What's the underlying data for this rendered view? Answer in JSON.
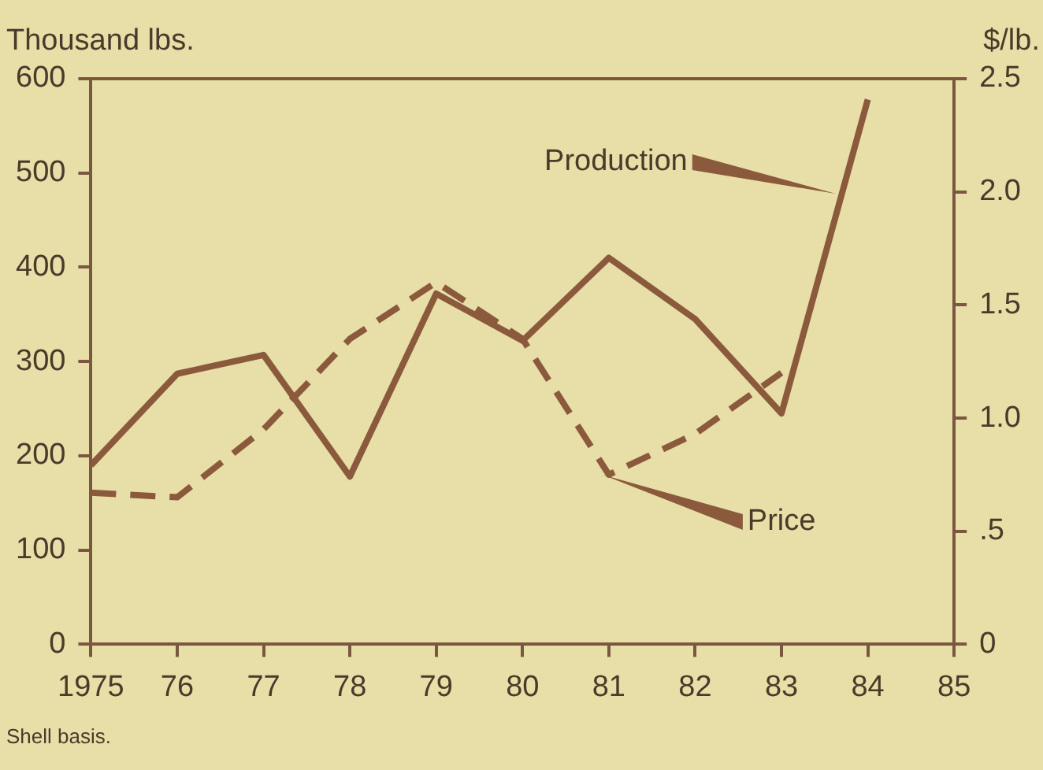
{
  "chart_data": {
    "type": "line",
    "ylabel": "Thousand lbs.",
    "y2label": "$/lb.",
    "annotations": [
      "Shell basis."
    ],
    "x": [
      1975,
      1976,
      1977,
      1978,
      1979,
      1980,
      1981,
      1982,
      1983,
      1984
    ],
    "series": [
      {
        "name": "Production",
        "color": "#8b5a3c",
        "line_style": "solid",
        "values": [
          190,
          287,
          307,
          178,
          372,
          322,
          410,
          345,
          245,
          578
        ]
      },
      {
        "name": "Price",
        "color": "#8b5a3c",
        "line_style": "dashed",
        "axis": "y2",
        "values": [
          0.67,
          0.65,
          0.95,
          1.35,
          1.6,
          1.35,
          0.75,
          0.93,
          1.2,
          null
        ]
      }
    ],
    "xlim": [
      1975,
      1985
    ],
    "xticks": [
      {
        "value": 1975,
        "label": "1975"
      },
      {
        "value": 1976,
        "label": "76"
      },
      {
        "value": 1977,
        "label": "77"
      },
      {
        "value": 1978,
        "label": "78"
      },
      {
        "value": 1979,
        "label": "79"
      },
      {
        "value": 1980,
        "label": "80"
      },
      {
        "value": 1981,
        "label": "81"
      },
      {
        "value": 1982,
        "label": "82"
      },
      {
        "value": 1983,
        "label": "83"
      },
      {
        "value": 1984,
        "label": "84"
      },
      {
        "value": 1985,
        "label": "85"
      }
    ],
    "ylim": [
      0,
      600
    ],
    "yticks": [
      0,
      100,
      200,
      300,
      400,
      500,
      600
    ],
    "y2lim": [
      0,
      2.5
    ],
    "y2ticks": [
      0,
      {
        "value": 0.5,
        "label": ".5"
      },
      {
        "value": 1,
        "label": "1.0"
      },
      {
        "value": 1.5,
        "label": "1.5"
      },
      {
        "value": 2,
        "label": "2.0"
      },
      2.5
    ],
    "grid": false,
    "marker": "none"
  }
}
